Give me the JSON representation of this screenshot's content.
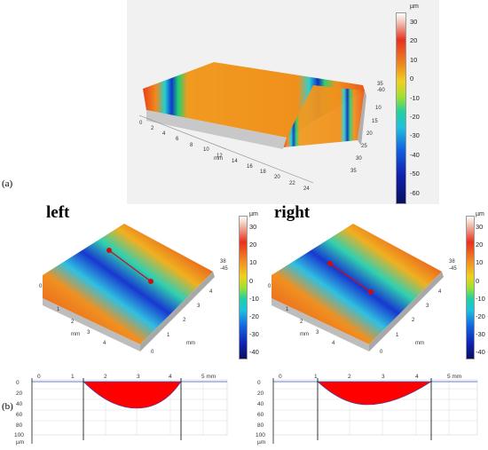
{
  "panel_a": {
    "letter": "(a)",
    "unit": "µm",
    "colorbar_ticks": [
      "30",
      "20",
      "10",
      "0",
      "-10",
      "-20",
      "-30",
      "-40",
      "-50",
      "-60"
    ],
    "axis_ticks": [
      "0",
      "2",
      "4",
      "6",
      "8",
      "10",
      "12",
      "14",
      "16",
      "18",
      "20",
      "22",
      "24"
    ],
    "axis_unit": "mm",
    "right_labels": [
      "35",
      "-60",
      "10",
      "15",
      "20",
      "25",
      "30",
      "35"
    ]
  },
  "panel_b": {
    "letter": "(b)",
    "left_label": "left",
    "right_label": "right",
    "unit": "µm",
    "colorbar_ticks": [
      "30",
      "20",
      "10",
      "0",
      "-10",
      "-20",
      "-30",
      "-40"
    ],
    "surface_ticks": [
      "0",
      "1",
      "2",
      "3",
      "4",
      "5"
    ],
    "axis_unit": "mm",
    "range_labels": [
      "38",
      "-45"
    ],
    "profile_x_ticks": [
      "0",
      "1",
      "2",
      "3",
      "4",
      "5 mm"
    ],
    "profile_y_ticks": [
      "0",
      "20",
      "40",
      "60",
      "80",
      "100"
    ],
    "profile_y_unit": "µm"
  },
  "colors": {
    "surface_high": "#e8401a",
    "surface_orange": "#f0901c",
    "groove_blue": "#1840d8",
    "profile_fill": "#ff0000"
  }
}
